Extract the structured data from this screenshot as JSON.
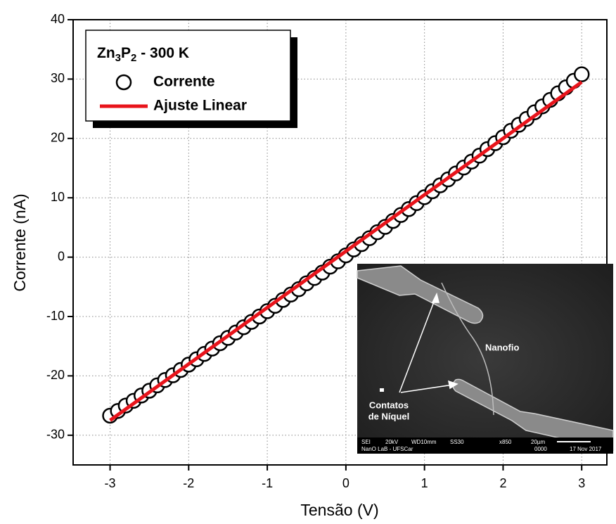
{
  "chart_data": {
    "type": "scatter",
    "x_label": "Tensão (V)",
    "y_label": "Corrente (nA)",
    "xlim": [
      -3.47,
      3.32
    ],
    "ylim": [
      -35,
      40
    ],
    "xticks": [
      -3,
      -2,
      -1,
      0,
      1,
      2,
      3
    ],
    "yticks": [
      -30,
      -20,
      -10,
      0,
      10,
      20,
      30,
      40
    ],
    "grid": true,
    "legend_title": [
      "Zn",
      "3",
      "P",
      "2",
      " - 300 K"
    ],
    "legend_position": "upper left",
    "series": [
      {
        "name": "Corrente",
        "type": "scatter",
        "color": "#000000",
        "x": [
          -3,
          -2.9,
          -2.8,
          -2.7,
          -2.6,
          -2.5,
          -2.4,
          -2.3,
          -2.2,
          -2.1,
          -2,
          -1.9,
          -1.8,
          -1.7,
          -1.6,
          -1.5,
          -1.4,
          -1.3,
          -1.2,
          -1.1,
          -1,
          -0.9,
          -0.8,
          -0.7,
          -0.6,
          -0.5,
          -0.4,
          -0.3,
          -0.2,
          -0.1,
          0,
          0.1,
          0.2,
          0.3,
          0.4,
          0.5,
          0.6,
          0.7,
          0.8,
          0.9,
          1,
          1.1,
          1.2,
          1.3,
          1.4,
          1.5,
          1.6,
          1.7,
          1.8,
          1.9,
          2,
          2.1,
          2.2,
          2.3,
          2.4,
          2.5,
          2.6,
          2.7,
          2.8,
          2.9,
          3
        ],
        "values": [
          -26.7,
          -25.9,
          -25.0,
          -24.2,
          -23.3,
          -22.5,
          -21.6,
          -20.7,
          -19.9,
          -19.0,
          -18.1,
          -17.2,
          -16.3,
          -15.4,
          -14.5,
          -13.6,
          -12.7,
          -11.8,
          -10.9,
          -10.0,
          -9.1,
          -8.2,
          -7.2,
          -6.3,
          -5.4,
          -4.4,
          -3.5,
          -2.6,
          -1.6,
          -0.7,
          0.3,
          1.3,
          2.2,
          3.2,
          4.2,
          5.1,
          6.1,
          7.1,
          8.1,
          9.1,
          10.1,
          11.1,
          12.1,
          13.1,
          14.1,
          15.1,
          16.1,
          17.1,
          18.2,
          19.2,
          20.2,
          21.3,
          22.3,
          23.3,
          24.4,
          25.4,
          26.5,
          27.6,
          28.6,
          29.7,
          30.8
        ]
      },
      {
        "name": "Ajuste Linear",
        "type": "line",
        "color": "#e8141b",
        "x": [
          -3,
          3
        ],
        "values": [
          -27.5,
          29.5
        ]
      }
    ],
    "inset": {
      "labels": [
        "Nanofio",
        "Contatos",
        "de Níquel"
      ],
      "info_bar": [
        "SEI",
        "20kV",
        "WD10mm",
        "SS30",
        "x850",
        "20µm",
        "NanO LaB - UFSCar",
        "0000",
        "17 Nov 2017"
      ]
    }
  }
}
